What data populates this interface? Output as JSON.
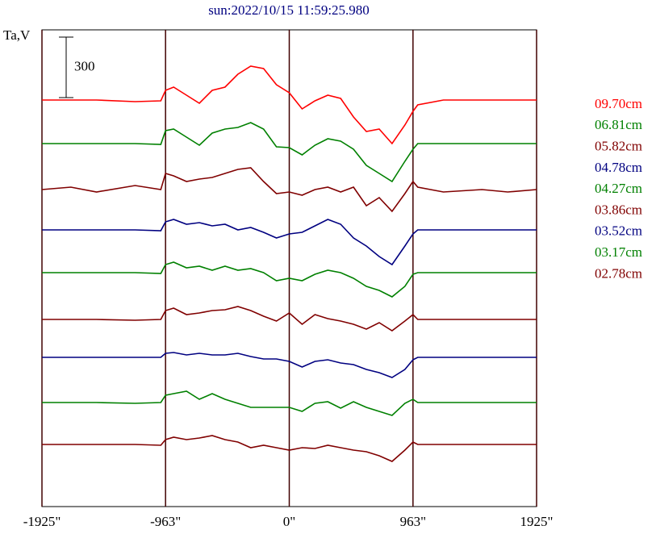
{
  "chart_data": {
    "type": "line",
    "title": "sun:2022/10/15 11:59:25.980",
    "y_label": "Ta,V",
    "scale_bar": 300,
    "x": [
      -1925,
      -1700,
      -1500,
      -1200,
      -1000,
      -963,
      -900,
      -800,
      -700,
      -600,
      -500,
      -400,
      -300,
      -200,
      -100,
      0,
      100,
      200,
      300,
      400,
      500,
      600,
      700,
      800,
      900,
      963,
      1000,
      1200,
      1500,
      1700,
      1925
    ],
    "xlim": [
      -1925,
      1925
    ],
    "ylim": [
      0,
      2364
    ],
    "xticks": [
      {
        "value": -1925,
        "label": "-1925\""
      },
      {
        "value": -963,
        "label": "-963\""
      },
      {
        "value": 0,
        "label": "0\""
      },
      {
        "value": 963,
        "label": "963\""
      },
      {
        "value": 1925,
        "label": "1925\""
      }
    ],
    "grid": true,
    "series": [
      {
        "name": "09.70cm",
        "color": "#ff0000",
        "values": [
          2016,
          2016,
          2016,
          2008,
          2012,
          2064,
          2080,
          2040,
          2000,
          2064,
          2080,
          2144,
          2184,
          2172,
          2092,
          2052,
          1972,
          2012,
          2040,
          2024,
          1932,
          1860,
          1872,
          1800,
          1892,
          1960,
          1992,
          2016,
          2016,
          2016,
          2016
        ]
      },
      {
        "name": "06.81cm",
        "color": "#008000",
        "values": [
          1800,
          1800,
          1800,
          1800,
          1796,
          1864,
          1872,
          1832,
          1792,
          1852,
          1872,
          1880,
          1904,
          1872,
          1784,
          1780,
          1744,
          1792,
          1824,
          1812,
          1772,
          1692,
          1652,
          1612,
          1712,
          1772,
          1800,
          1800,
          1800,
          1800,
          1800
        ]
      },
      {
        "name": "05.82cm",
        "color": "#800000",
        "values": [
          1572,
          1584,
          1560,
          1592,
          1572,
          1652,
          1640,
          1612,
          1624,
          1632,
          1652,
          1672,
          1680,
          1612,
          1552,
          1560,
          1544,
          1572,
          1584,
          1560,
          1584,
          1492,
          1532,
          1464,
          1552,
          1612,
          1584,
          1560,
          1572,
          1560,
          1572
        ]
      },
      {
        "name": "04.78cm",
        "color": "#000080",
        "values": [
          1372,
          1372,
          1372,
          1372,
          1368,
          1412,
          1424,
          1400,
          1408,
          1392,
          1400,
          1372,
          1384,
          1360,
          1332,
          1352,
          1360,
          1392,
          1424,
          1400,
          1332,
          1292,
          1240,
          1200,
          1292,
          1352,
          1372,
          1372,
          1372,
          1372,
          1372
        ]
      },
      {
        "name": "04.27cm",
        "color": "#008000",
        "values": [
          1160,
          1160,
          1160,
          1160,
          1156,
          1200,
          1212,
          1184,
          1192,
          1172,
          1192,
          1172,
          1180,
          1160,
          1120,
          1132,
          1120,
          1152,
          1172,
          1160,
          1132,
          1092,
          1072,
          1040,
          1092,
          1152,
          1160,
          1160,
          1160,
          1160,
          1160
        ]
      },
      {
        "name": "03.86cm",
        "color": "#800000",
        "values": [
          928,
          928,
          928,
          924,
          928,
          972,
          984,
          952,
          960,
          972,
          976,
          992,
          972,
          944,
          920,
          960,
          904,
          952,
          932,
          920,
          904,
          880,
          912,
          872,
          920,
          952,
          928,
          928,
          928,
          928,
          928
        ]
      },
      {
        "name": "03.52cm",
        "color": "#000080",
        "values": [
          740,
          740,
          740,
          740,
          740,
          760,
          764,
          752,
          760,
          752,
          752,
          760,
          744,
          732,
          732,
          720,
          692,
          720,
          728,
          712,
          704,
          680,
          664,
          640,
          680,
          728,
          740,
          740,
          740,
          740,
          740
        ]
      },
      {
        "name": "03.17cm",
        "color": "#008000",
        "values": [
          516,
          516,
          516,
          512,
          516,
          552,
          560,
          572,
          532,
          560,
          532,
          512,
          492,
          492,
          492,
          492,
          472,
          512,
          520,
          488,
          520,
          492,
          472,
          452,
          512,
          532,
          516,
          516,
          516,
          516,
          516
        ]
      },
      {
        "name": "02.78cm",
        "color": "#800000",
        "values": [
          308,
          308,
          308,
          308,
          304,
          332,
          344,
          332,
          340,
          352,
          332,
          320,
          292,
          304,
          292,
          280,
          292,
          288,
          304,
          292,
          280,
          272,
          252,
          224,
          280,
          320,
          308,
          308,
          308,
          308,
          308
        ]
      }
    ]
  }
}
